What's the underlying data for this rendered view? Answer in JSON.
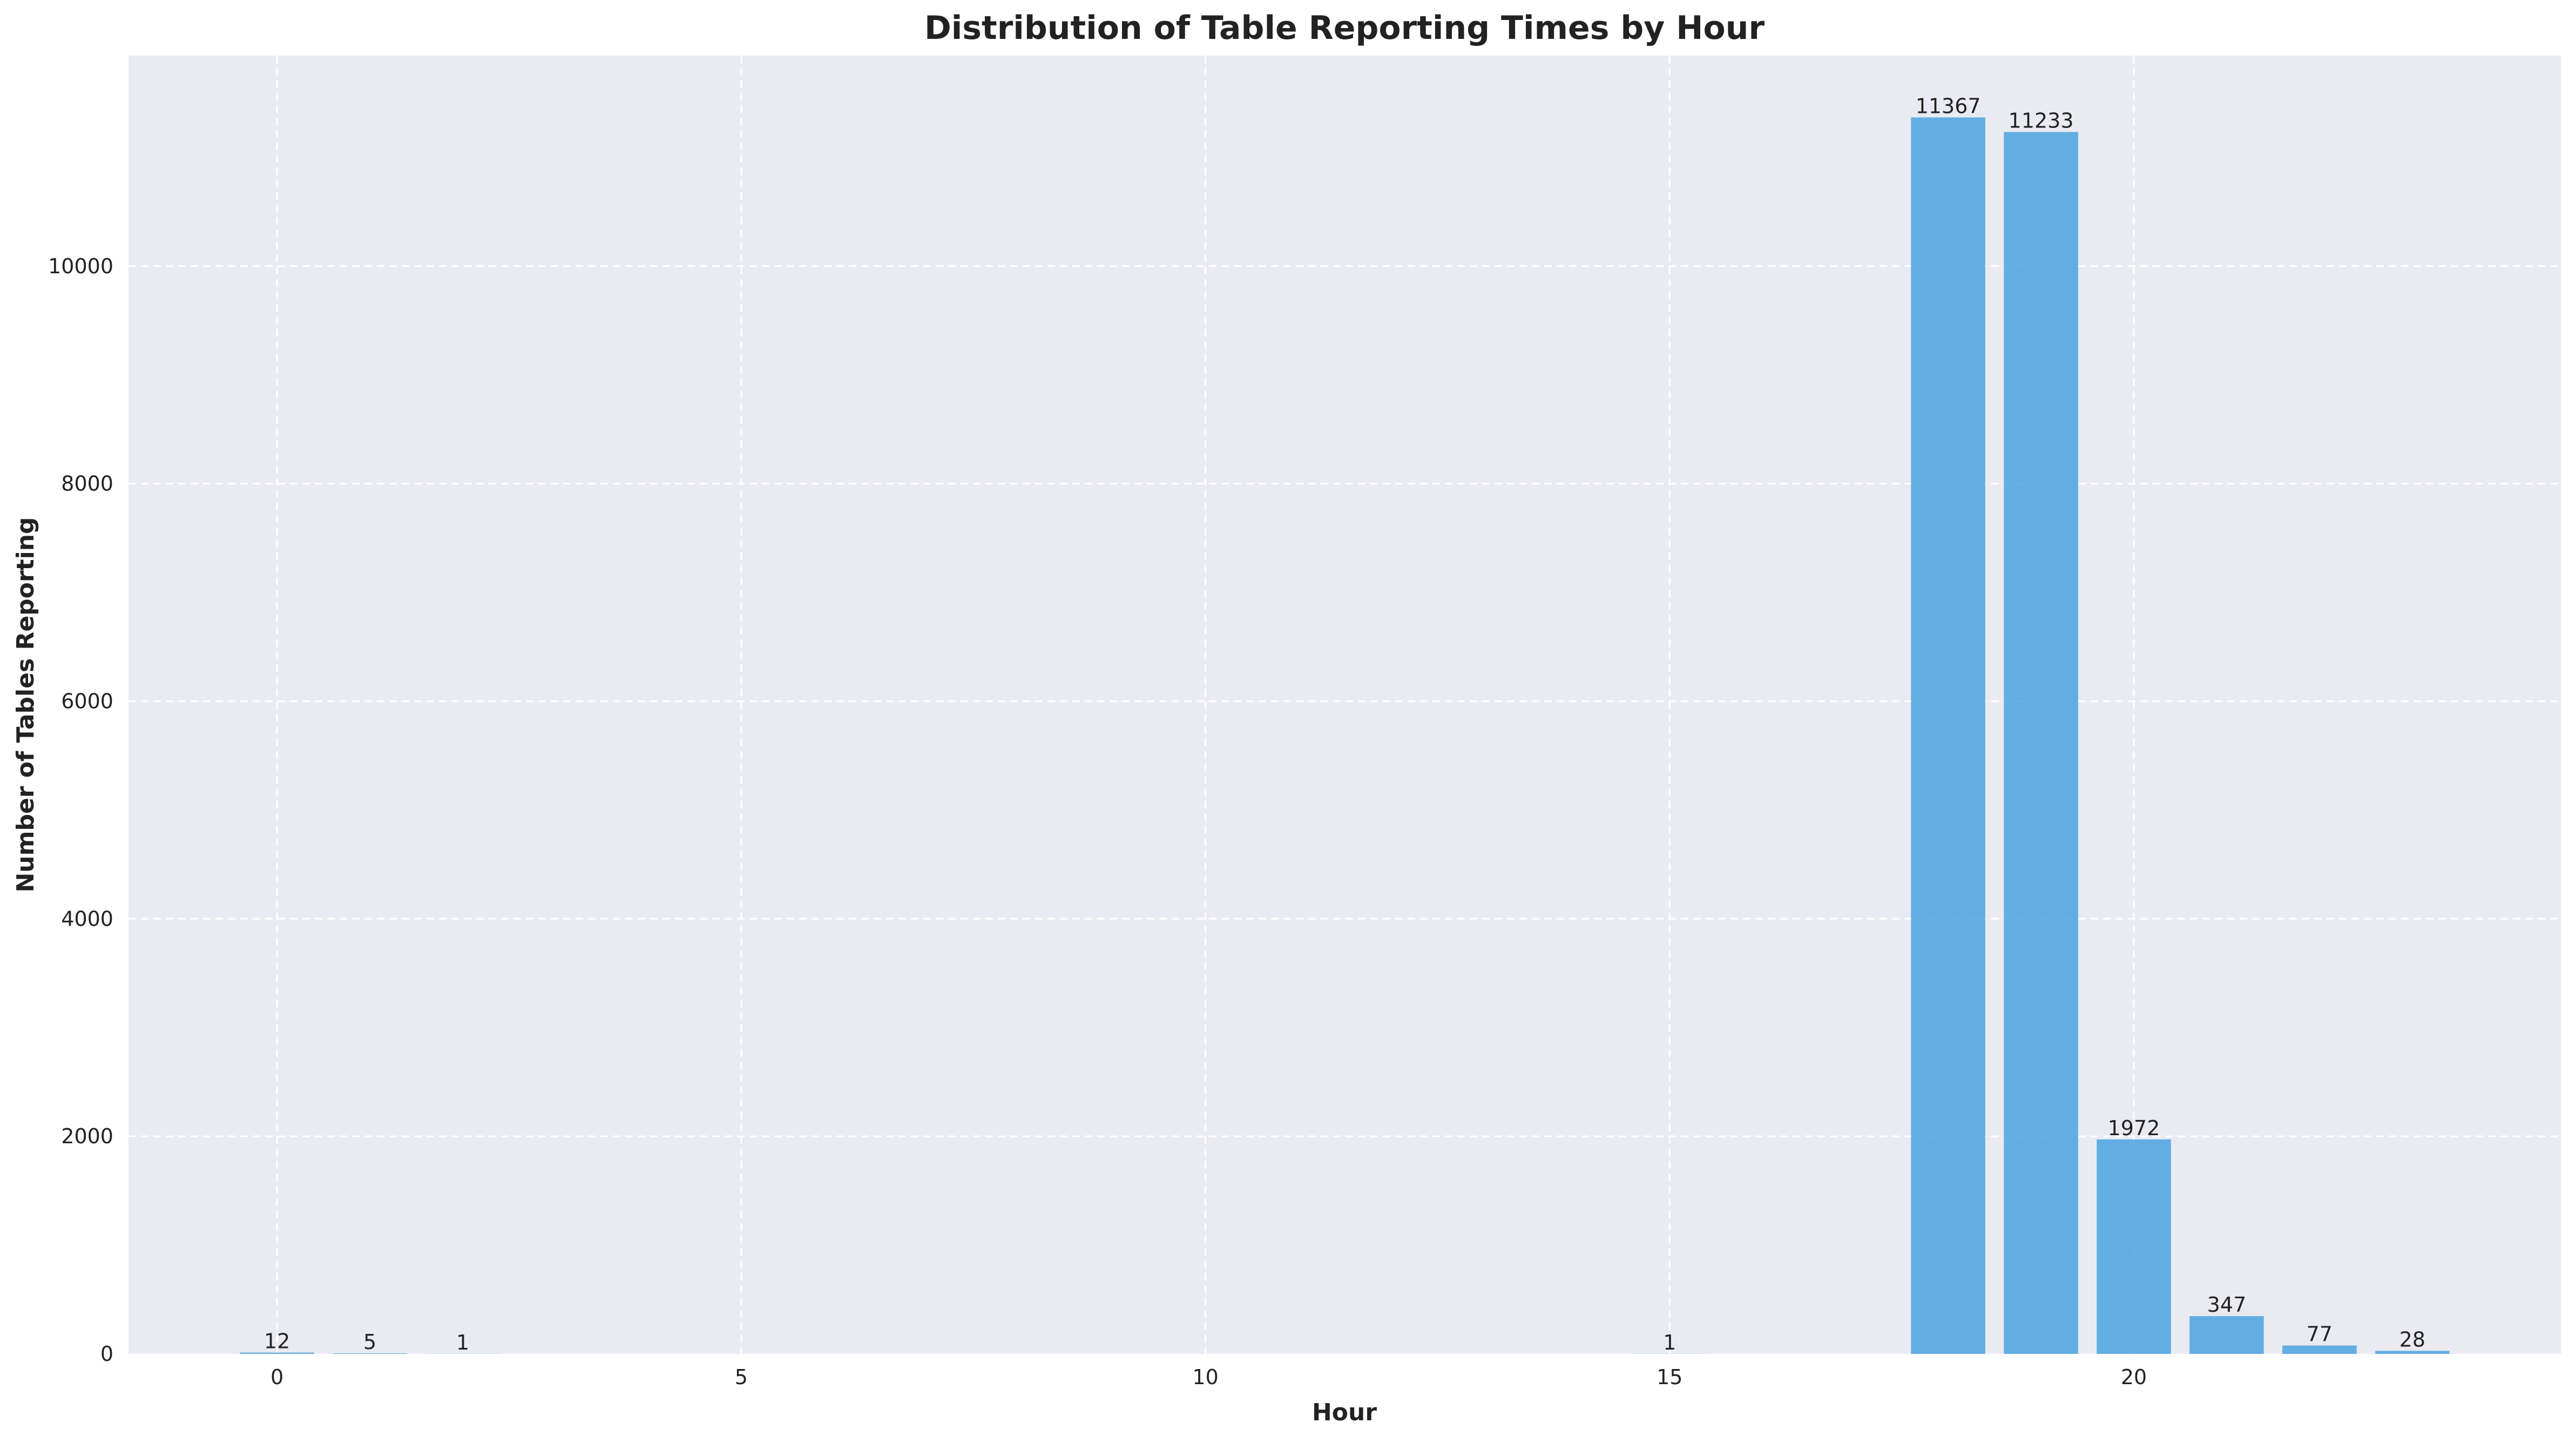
{
  "chart_data": {
    "type": "bar",
    "title": "Distribution of Table Reporting Times by Hour",
    "xlabel": "Hour",
    "ylabel": "Number of Tables Reporting",
    "x": [
      0,
      1,
      2,
      15,
      18,
      19,
      20,
      21,
      22,
      23
    ],
    "values": [
      12,
      5,
      1,
      1,
      11367,
      11233,
      1972,
      347,
      77,
      28
    ],
    "data_labels": [
      "12",
      "5",
      "1",
      "1",
      "11367",
      "11233",
      "1972",
      "347",
      "77",
      "28"
    ],
    "xlim": [
      -1.6,
      24.6
    ],
    "ylim": [
      0,
      11935
    ],
    "xticks": [
      0,
      5,
      10,
      15,
      20
    ],
    "xtick_labels": [
      "0",
      "5",
      "10",
      "15",
      "20"
    ],
    "yticks": [
      0,
      2000,
      4000,
      6000,
      8000,
      10000
    ],
    "ytick_labels": [
      "0",
      "2000",
      "4000",
      "6000",
      "8000",
      "10000"
    ],
    "grid": true,
    "legend": "none",
    "colors": {
      "bar": "#4aa3df",
      "plot_background": "#eaeaf2",
      "grid": "#ffffff",
      "text": "#222222"
    }
  }
}
